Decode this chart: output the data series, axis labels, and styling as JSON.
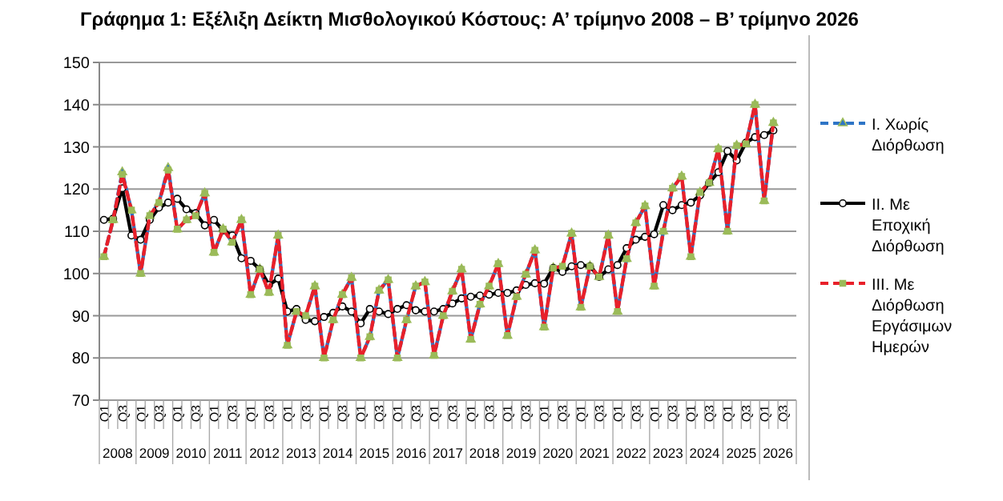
{
  "chart_data": {
    "type": "line",
    "title": "Γράφημα 1: Εξέλιξη Δείκτη Μισθολογικού Κόστους: Α’ τρίμηνο 2008 – Β’ τρίμηνο 2026",
    "categories": [
      "Q1",
      null,
      "Q3",
      null,
      "Q1",
      null,
      "Q3",
      null,
      "Q1",
      null,
      "Q3",
      null,
      "Q1",
      null,
      "Q3",
      null,
      "Q1",
      null,
      "Q3",
      null,
      "Q1",
      null,
      "Q3",
      null,
      "Q1",
      null,
      "Q3",
      null,
      "Q1",
      null,
      "Q3",
      null,
      "Q1",
      null,
      "Q3",
      null,
      "Q1",
      null,
      "Q3",
      null,
      "Q1",
      null,
      "Q3",
      null,
      "Q1",
      null,
      "Q3",
      null,
      "Q1",
      null,
      "Q3",
      null,
      "Q1",
      null,
      "Q3",
      null,
      "Q1",
      null,
      "Q3",
      null,
      "Q1",
      null,
      "Q3",
      null,
      "Q1",
      null,
      "Q3",
      null,
      "Q1",
      null,
      "Q3",
      null,
      "Q1",
      null,
      "Q3",
      null
    ],
    "annotations": [
      "2008",
      "2009",
      "2010",
      "2011",
      "2012",
      "2013",
      "2014",
      "2015",
      "2016",
      "2017",
      "2018",
      "2019",
      "2020",
      "2021",
      "2022",
      "2023",
      "2024",
      "2025",
      "2026"
    ],
    "series": [
      {
        "name": "I. Χωρίς Διόρθωση",
        "color": "#2e75c6",
        "line_style": "dashed",
        "marker": "triangle",
        "values": [
          104,
          112.7,
          124,
          115,
          100,
          113.7,
          116.8,
          125,
          110.5,
          112.7,
          113.7,
          119,
          105,
          110.5,
          107.4,
          112.7,
          95,
          101,
          95.5,
          109,
          83,
          91,
          90,
          97,
          80,
          89,
          95,
          99,
          80,
          85,
          96,
          98.5,
          80,
          89,
          97,
          98,
          80.6,
          90,
          95.8,
          101,
          84.4,
          92.7,
          97,
          102.3,
          85.3,
          94.5,
          99.8,
          105.5,
          87.3,
          101.3,
          101.7,
          109.5,
          92,
          101.7,
          99.2,
          109,
          91,
          103.5,
          112,
          116,
          97,
          110,
          120.2,
          123,
          104,
          119.2,
          121.5,
          129.5,
          110,
          130.3,
          130.7,
          140,
          117.2,
          135.7,
          null,
          null
        ]
      },
      {
        "name": "II. Με Εποχική Διόρθωση",
        "color": "#000000",
        "line_style": "solid",
        "marker": "circle",
        "values": [
          112.7,
          113,
          120.2,
          109,
          108,
          112.7,
          115.6,
          116.8,
          117.7,
          115.2,
          114.3,
          111.4,
          112.7,
          110.2,
          109,
          103.6,
          103,
          101,
          97.3,
          98.8,
          91,
          91.6,
          89,
          88.7,
          89.7,
          90.7,
          92.2,
          91,
          88.2,
          91.6,
          91,
          90.4,
          91.6,
          92.5,
          91.3,
          91,
          91,
          91.6,
          92.9,
          94.1,
          94.5,
          94.8,
          95,
          95.4,
          95.4,
          96,
          97.3,
          97.7,
          97.6,
          101.3,
          100.4,
          101.7,
          102,
          101.7,
          99.2,
          101,
          102,
          106,
          108,
          108.7,
          109.3,
          116.2,
          115,
          116.2,
          116.8,
          118.5,
          121.5,
          124,
          129,
          126.8,
          131,
          132.3,
          132.8,
          133.9,
          null,
          null
        ]
      },
      {
        "name": "III. Με Διόρθωση Εργάσιμων Ημερών",
        "color": "#e8202a",
        "line_style": "dashed",
        "marker": "square",
        "values": [
          104,
          112.7,
          123.5,
          115,
          100,
          113.7,
          116.8,
          124.5,
          110.5,
          112.7,
          113.7,
          119,
          105,
          110.5,
          107.4,
          112.7,
          95,
          101,
          95.5,
          109,
          83,
          91,
          90,
          97,
          80,
          89,
          95,
          99,
          80,
          85,
          96,
          98.5,
          80,
          89,
          97,
          98,
          80.6,
          90,
          95.8,
          101,
          84.4,
          92.7,
          97,
          102.3,
          85.3,
          94.5,
          99.8,
          105.5,
          87.3,
          101.3,
          101.7,
          109.5,
          92,
          101.7,
          99.2,
          109,
          91,
          103.5,
          112,
          116,
          97,
          110,
          120.2,
          123,
          104,
          119.2,
          121.5,
          129.5,
          110,
          130.3,
          130.7,
          140,
          117.2,
          135.7,
          null,
          null
        ]
      }
    ],
    "ylim": [
      70,
      150
    ],
    "yticks": [
      70,
      80,
      90,
      100,
      110,
      120,
      130,
      140,
      150
    ],
    "grid": "y",
    "legend": "right"
  }
}
